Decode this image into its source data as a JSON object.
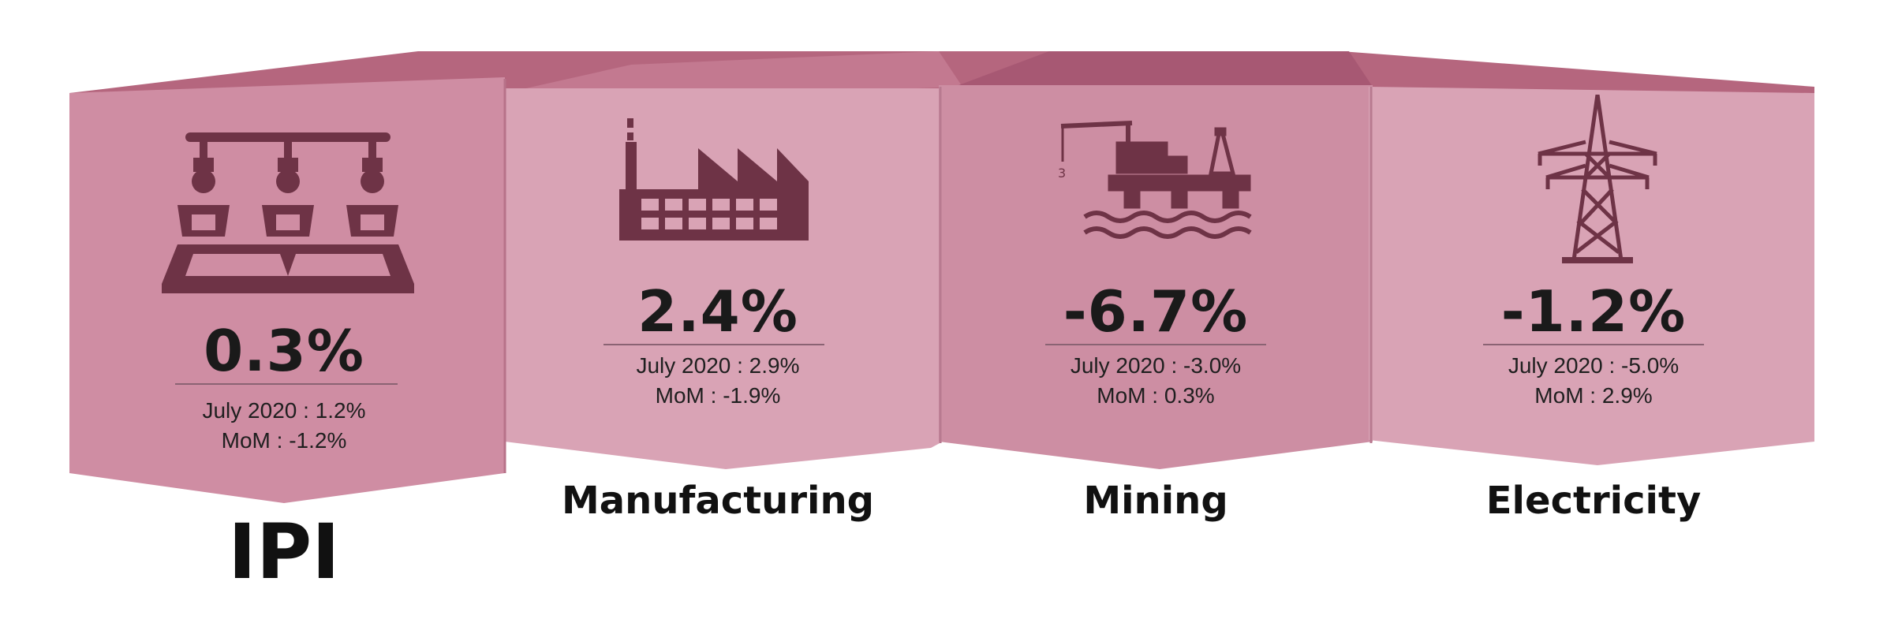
{
  "colors": {
    "top_band": "#b5667e",
    "panel_ipi": "#cf8da3",
    "panel_light": "#d9a3b5",
    "panel_mid": "#cd8ea3",
    "icon": "#6e3346"
  },
  "cards": [
    {
      "value": "0.3%",
      "prev": "July 2020 : 1.2%",
      "mom": "MoM : -1.2%",
      "label": "IPI",
      "icon": "assembly-line-icon"
    },
    {
      "value": "2.4%",
      "prev": "July 2020 : 2.9%",
      "mom": "MoM : -1.9%",
      "label": "Manufacturing",
      "icon": "factory-icon"
    },
    {
      "value": "-6.7%",
      "prev": "July 2020 : -3.0%",
      "mom": "MoM : 0.3%",
      "label": "Mining",
      "icon": "oil-rig-icon"
    },
    {
      "value": "-1.2%",
      "prev": "July 2020 : -5.0%",
      "mom": "MoM : 2.9%",
      "label": "Electricity",
      "icon": "transmission-tower-icon"
    }
  ]
}
